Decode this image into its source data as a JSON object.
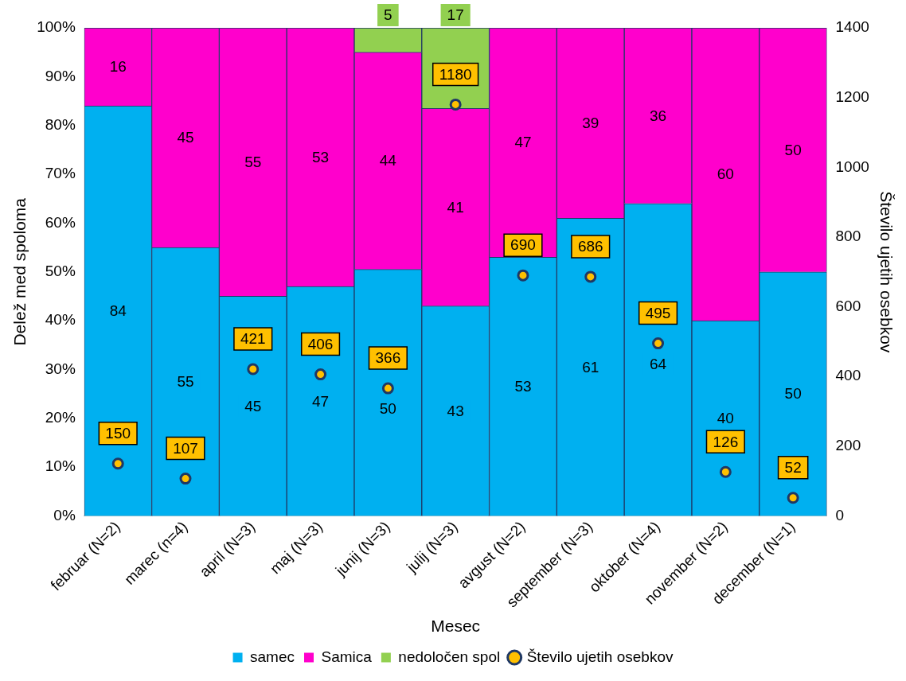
{
  "chart_data": {
    "type": "bar",
    "stacked": true,
    "xlabel": "Mesec",
    "ylabel": "Delež med spoloma",
    "y2label": "Število ujetih osebkov",
    "categories": [
      "februar (N=2)",
      "marec (n=4)",
      "april (N=3)",
      "maj (N=3)",
      "junij (N=3)",
      "julij (N=3)",
      "avgust (N=2)",
      "september (N=3)",
      "oktober (N=4)",
      "november (N=2)",
      "december (N=1)"
    ],
    "series": [
      {
        "name": "samec",
        "color": "#00b0f0",
        "values": [
          84,
          55,
          45,
          47,
          50.5,
          43,
          53,
          61,
          64,
          40,
          50
        ],
        "value_labels": [
          "84",
          "55",
          "45",
          "47",
          "50",
          "43",
          "53",
          "61",
          "64",
          "40",
          "50"
        ]
      },
      {
        "name": "Samica",
        "color": "#ff00cc",
        "values": [
          16,
          45,
          55,
          53,
          44.5,
          40.5,
          47,
          39,
          36,
          60,
          50
        ],
        "value_labels": [
          "16",
          "45",
          "55",
          "53",
          "44",
          "41",
          "47",
          "39",
          "36",
          "60",
          "50"
        ]
      },
      {
        "name": "nedoločen spol",
        "color": "#92d050",
        "values": [
          null,
          null,
          null,
          null,
          5,
          16.5,
          null,
          null,
          null,
          null,
          null
        ],
        "value_labels": [
          null,
          null,
          null,
          null,
          "5",
          "17",
          null,
          null,
          null,
          null,
          null
        ]
      },
      {
        "name": "Število ujetih osebkov",
        "type": "scatter",
        "axis": "y2",
        "marker": "circle",
        "color": "#ffc000",
        "values": [
          150,
          107,
          421,
          406,
          366,
          1180,
          690,
          686,
          495,
          126,
          52
        ],
        "value_labels": [
          "150",
          "107",
          "421",
          "406",
          "366",
          "1180",
          "690",
          "686",
          "495",
          "126",
          "52"
        ]
      }
    ],
    "ylim": [
      0,
      100
    ],
    "yticks": [
      {
        "value": 0,
        "label": "0%"
      },
      {
        "value": 10,
        "label": "10%"
      },
      {
        "value": 20,
        "label": "20%"
      },
      {
        "value": 30,
        "label": "30%"
      },
      {
        "value": 40,
        "label": "40%"
      },
      {
        "value": 50,
        "label": "50%"
      },
      {
        "value": 60,
        "label": "60%"
      },
      {
        "value": 70,
        "label": "70%"
      },
      {
        "value": 80,
        "label": "80%"
      },
      {
        "value": 90,
        "label": "90%"
      },
      {
        "value": 100,
        "label": "100%"
      }
    ],
    "y2lim": [
      0,
      1400
    ],
    "y2ticks": [
      0,
      200,
      400,
      600,
      800,
      1000,
      1200,
      1400
    ],
    "grid": false,
    "legend": "bottom"
  }
}
